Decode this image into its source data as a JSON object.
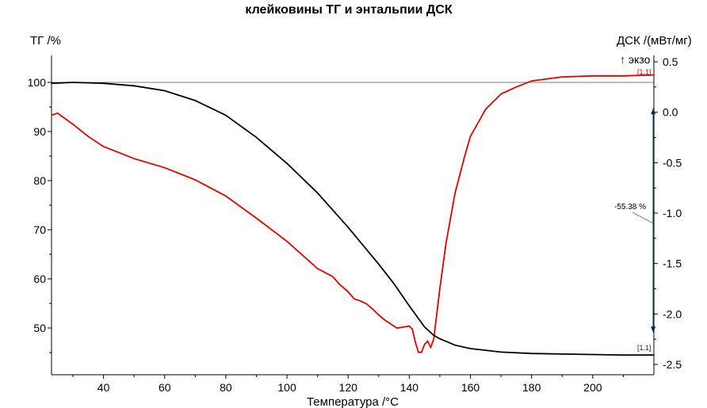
{
  "chart_data": {
    "type": "line",
    "title": "клейковины ТГ и энтальпии ДСК",
    "xlabel": "Температура /°C",
    "ylabel_left": "ТГ /%",
    "ylabel_right": "ДСК /(мВт/мг)",
    "exo_label": "↑ экзо",
    "xlim": [
      23,
      220
    ],
    "ylim_left": [
      43,
      104
    ],
    "ylim_right": [
      -2.5,
      0.5
    ],
    "x_ticks": [
      "40",
      "60",
      "80",
      "100",
      "120",
      "140",
      "160",
      "180",
      "200"
    ],
    "y_left_ticks": [
      "100",
      "90",
      "80",
      "70",
      "60",
      "50"
    ],
    "y_right_ticks": [
      "0.5",
      "0.0",
      "-0.5",
      "-1.0",
      "-1.5",
      "-2.0",
      "-2.5"
    ],
    "colors": {
      "tg": "#000000",
      "dsc": "#e00000",
      "step": "#0a2a55",
      "baseline": "#555555"
    },
    "series": [
      {
        "name": "ТГ",
        "axis": "left",
        "x": [
          23,
          30,
          40,
          50,
          60,
          70,
          80,
          90,
          100,
          110,
          120,
          130,
          135,
          140,
          145,
          148,
          150,
          155,
          160,
          170,
          180,
          190,
          200,
          210,
          220
        ],
        "values": [
          99.8,
          100.0,
          99.8,
          99.3,
          98.3,
          96.3,
          93.3,
          88.8,
          83.5,
          77.5,
          70.5,
          63.0,
          59.0,
          54.5,
          50.2,
          48.5,
          47.8,
          46.5,
          45.8,
          45.1,
          44.8,
          44.7,
          44.6,
          44.5,
          44.5
        ]
      },
      {
        "name": "ДСК",
        "axis": "right",
        "x": [
          23,
          25,
          30,
          35,
          40,
          50,
          60,
          70,
          80,
          90,
          100,
          110,
          115,
          117,
          120,
          122,
          124,
          126,
          128,
          130,
          132,
          134,
          136,
          138,
          140,
          141,
          142,
          143,
          144,
          145,
          146,
          147,
          148,
          149,
          150,
          152,
          155,
          158,
          160,
          165,
          170,
          175,
          180,
          185,
          190,
          200,
          210,
          220
        ],
        "values": [
          -0.03,
          -0.01,
          -0.12,
          -0.24,
          -0.34,
          -0.46,
          -0.55,
          -0.67,
          -0.83,
          -1.05,
          -1.28,
          -1.55,
          -1.63,
          -1.7,
          -1.78,
          -1.85,
          -1.87,
          -1.9,
          -1.95,
          -2.01,
          -2.06,
          -2.1,
          -2.14,
          -2.13,
          -2.12,
          -2.15,
          -2.28,
          -2.38,
          -2.38,
          -2.3,
          -2.27,
          -2.33,
          -2.25,
          -2.0,
          -1.75,
          -1.3,
          -0.8,
          -0.45,
          -0.24,
          0.03,
          0.18,
          0.25,
          0.31,
          0.33,
          0.35,
          0.36,
          0.36,
          0.37
        ]
      }
    ],
    "annotations": [
      {
        "text": "-55.38 %",
        "type": "mass_step",
        "axis": "left",
        "x": 219,
        "y_from": 99.8,
        "y_to": 44.5
      },
      {
        "text": "[1.1]",
        "curve": "ДСК"
      },
      {
        "text": "[1.1]",
        "curve": "ТГ"
      }
    ]
  }
}
